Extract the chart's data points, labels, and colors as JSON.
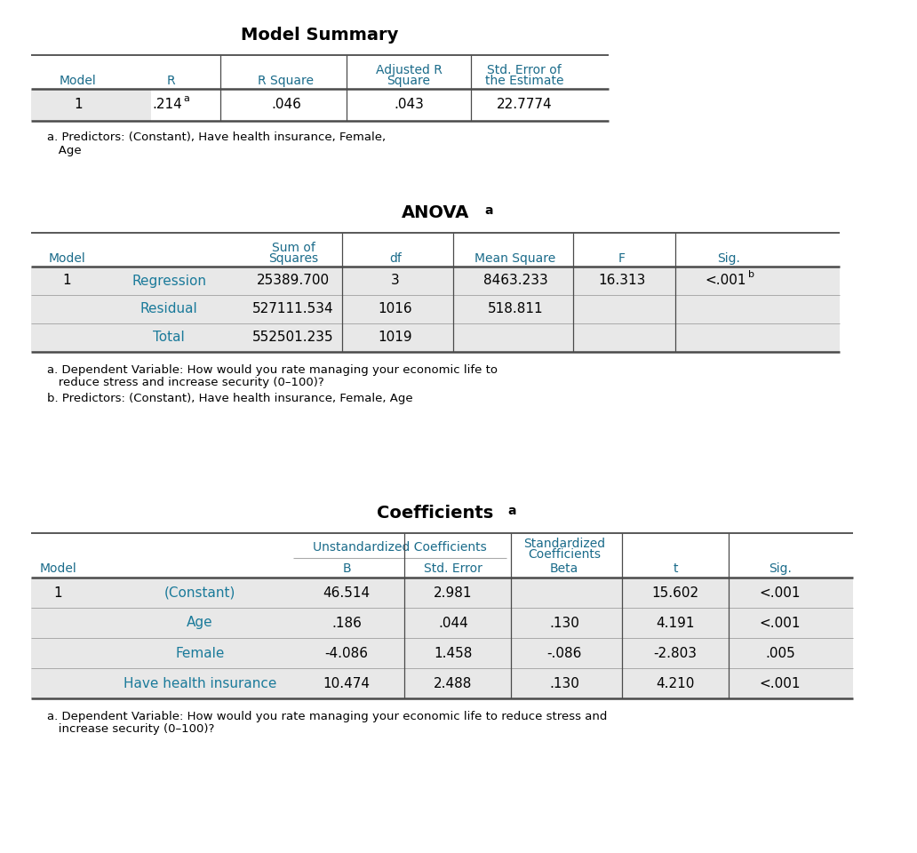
{
  "bg_color": "#ffffff",
  "header_color": "#1a6b8a",
  "row_label_color": "#1a7a9a",
  "text_color": "#000000",
  "shaded_color": "#e8e8e8",
  "line_color": "#4a4a4a",
  "t1_title": "Model Summary",
  "t1_headers_line1": [
    "",
    "",
    "",
    "Adjusted R",
    "Std. Error of"
  ],
  "t1_headers_line2": [
    "Model",
    "R",
    "R Square",
    "Square",
    "the Estimate"
  ],
  "t1_row": [
    "1",
    ".214",
    "a",
    ".046",
    ".043",
    "22.7774"
  ],
  "t1_footnote1": "a. Predictors: (Constant), Have health insurance, Female,",
  "t1_footnote2": "   Age",
  "t2_title": "ANOVA",
  "t2_headers_line1": [
    "",
    "",
    "Sum of",
    "",
    "",
    "",
    ""
  ],
  "t2_headers_line2": [
    "Model",
    "",
    "Squares",
    "df",
    "Mean Square",
    "F",
    "Sig."
  ],
  "t2_rows": [
    [
      "1",
      "Regression",
      "25389.700",
      "3",
      "8463.233",
      "16.313",
      "<.001",
      "b"
    ],
    [
      "",
      "Residual",
      "527111.534",
      "1016",
      "518.811",
      "",
      "",
      ""
    ],
    [
      "",
      "Total",
      "552501.235",
      "1019",
      "",
      "",
      "",
      ""
    ]
  ],
  "t2_fn_a": "a. Dependent Variable: How would you rate managing your economic life to",
  "t2_fn_a2": "   reduce stress and increase security (0–100)?",
  "t2_fn_b": "b. Predictors: (Constant), Have health insurance, Female, Age",
  "t3_title": "Coefficients",
  "t3_grp1": "Unstandardized Coefficients",
  "t3_grp2_1": "Standardized",
  "t3_grp2_2": "Coefficients",
  "t3_headers": [
    "Model",
    "",
    "B",
    "Std. Error",
    "Beta",
    "t",
    "Sig."
  ],
  "t3_rows": [
    [
      "1",
      "(Constant)",
      "46.514",
      "2.981",
      "",
      "15.602",
      "<.001"
    ],
    [
      "",
      "Age",
      ".186",
      ".044",
      ".130",
      "4.191",
      "<.001"
    ],
    [
      "",
      "Female",
      "-4.086",
      "1.458",
      "-.086",
      "-2.803",
      ".005"
    ],
    [
      "",
      "Have health insurance",
      "10.474",
      "2.488",
      ".130",
      "4.210",
      "<.001"
    ]
  ],
  "t3_fn1": "a. Dependent Variable: How would you rate managing your economic life to reduce stress and",
  "t3_fn2": "   increase security (0–100)?"
}
